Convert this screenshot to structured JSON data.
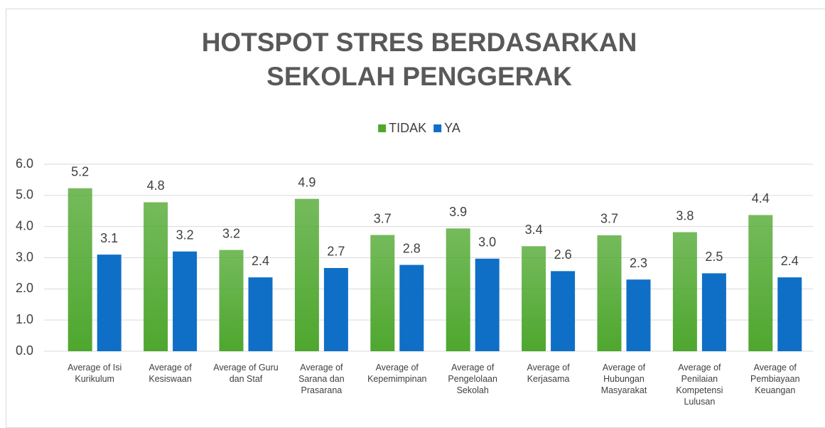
{
  "chart_data": {
    "type": "bar",
    "title": "HOTSPOT STRES BERDASARKAN SEKOLAH PENGGERAK",
    "categories": [
      "Average of Isi Kurikulum",
      "Average of Kesiswaan",
      "Average of Guru dan Staf",
      "Average of Sarana dan Prasarana",
      "Average of Kepemimpinan",
      "Average of Pengelolaan Sekolah",
      "Average of Kerjasama",
      "Average of Hubungan Masyarakat",
      "Average of Penilaian Kompetensi Lulusan",
      "Average of Pembiayaan Keuangan"
    ],
    "series": [
      {
        "name": "TIDAK",
        "color": "#4ea72e",
        "values": [
          5.23,
          4.78,
          3.25,
          4.89,
          3.73,
          3.94,
          3.37,
          3.72,
          3.82,
          4.37
        ],
        "value_labels": [
          "5.2",
          "4.8",
          "3.2",
          "4.9",
          "3.7",
          "3.9",
          "3.4",
          "3.7",
          "3.8",
          "4.4"
        ]
      },
      {
        "name": "YA",
        "color": "#0f6fc6",
        "values": [
          3.1,
          3.2,
          2.37,
          2.67,
          2.77,
          2.97,
          2.57,
          2.3,
          2.5,
          2.37
        ],
        "value_labels": [
          "3.1",
          "3.2",
          "2.4",
          "2.7",
          "2.8",
          "3.0",
          "2.6",
          "2.3",
          "2.5",
          "2.4"
        ]
      }
    ],
    "ylim": [
      0,
      6
    ],
    "yticks": [
      {
        "value": 0,
        "label": "0.0"
      },
      {
        "value": 1,
        "label": "1.0"
      },
      {
        "value": 2,
        "label": "2.0"
      },
      {
        "value": 3,
        "label": "3.0"
      },
      {
        "value": 4,
        "label": "4.0"
      },
      {
        "value": 5,
        "label": "5.0"
      },
      {
        "value": 6,
        "label": "6.0"
      }
    ],
    "grid": true,
    "legend": "top"
  }
}
